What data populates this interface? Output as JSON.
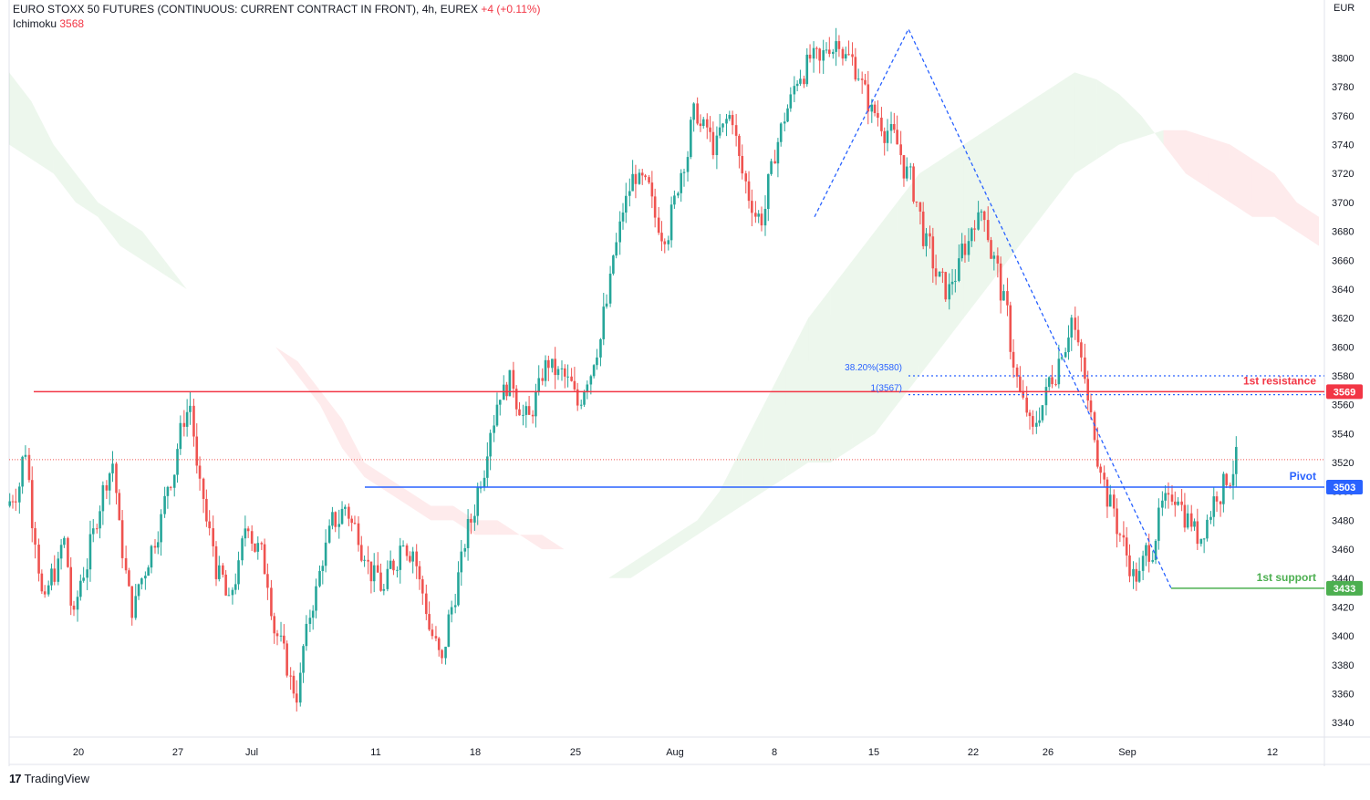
{
  "header": {
    "symbol": "EURO STOXX 50 FUTURES (CONTINUOUS: CURRENT CONTRACT IN FRONT), 4h, EUREX",
    "change": "+4 (+0.11%)",
    "indicator_name": "Ichimoku",
    "indicator_value": "3568"
  },
  "brand": {
    "name": "TradingView"
  },
  "colors": {
    "up": "#26a69a",
    "down": "#ef5350",
    "resistance": "#f23645",
    "pivot": "#2962ff",
    "support": "#4caf50",
    "fib": "#2962ff"
  },
  "chart_data": {
    "type": "candlestick",
    "title": "EURO STOXX 50 FUTURES (CONTINUOUS: CURRENT CONTRACT IN FRONT), 4h, EUREX",
    "currency_label": "EUR",
    "ylim": [
      3330,
      3830
    ],
    "y_ticks": [
      3340,
      3360,
      3380,
      3400,
      3420,
      3440,
      3460,
      3480,
      3500,
      3520,
      3540,
      3560,
      3580,
      3600,
      3620,
      3640,
      3660,
      3680,
      3700,
      3720,
      3740,
      3760,
      3780,
      3800
    ],
    "x_ticks": [
      "20",
      "27",
      "Jul",
      "11",
      "18",
      "25",
      "Aug",
      "8",
      "15",
      "22",
      "26",
      "Sep",
      "12"
    ],
    "close_path": [
      3500,
      3530,
      3470,
      3420,
      3445,
      3465,
      3410,
      3445,
      3470,
      3500,
      3520,
      3460,
      3420,
      3440,
      3460,
      3480,
      3510,
      3540,
      3560,
      3500,
      3470,
      3440,
      3420,
      3445,
      3480,
      3460,
      3440,
      3400,
      3380,
      3360,
      3400,
      3430,
      3460,
      3480,
      3490,
      3475,
      3460,
      3440,
      3430,
      3450,
      3470,
      3460,
      3430,
      3400,
      3380,
      3420,
      3450,
      3480,
      3510,
      3545,
      3570,
      3575,
      3560,
      3550,
      3570,
      3590,
      3580,
      3575,
      3560,
      3580,
      3600,
      3630,
      3670,
      3700,
      3720,
      3710,
      3690,
      3680,
      3700,
      3730,
      3760,
      3750,
      3740,
      3750,
      3760,
      3720,
      3700,
      3690,
      3720,
      3750,
      3770,
      3790,
      3800,
      3795,
      3810,
      3815,
      3800,
      3790,
      3770,
      3760,
      3750,
      3740,
      3720,
      3700,
      3670,
      3650,
      3640,
      3650,
      3670,
      3690,
      3695,
      3660,
      3630,
      3590,
      3560,
      3540,
      3560,
      3580,
      3600,
      3620,
      3590,
      3550,
      3520,
      3490,
      3470,
      3450,
      3440,
      3460,
      3480,
      3490,
      3500,
      3480,
      3470,
      3480,
      3500,
      3510,
      3522
    ],
    "indicators": {
      "ichimoku_value": 3568,
      "cloud_span_a": [
        3790,
        3770,
        3740,
        3720,
        3700,
        3690,
        3680,
        3660,
        3640,
        3630,
        3620,
        3610,
        3600,
        3580,
        3560,
        3530,
        3510,
        3500,
        3490,
        3480,
        3480,
        3470,
        3470,
        3470,
        3460,
        3460,
        3450,
        3440,
        3450,
        3460,
        3470,
        3480,
        3500,
        3530,
        3560,
        3590,
        3620,
        3640,
        3660,
        3680,
        3700,
        3720,
        3730,
        3740,
        3750,
        3760,
        3770,
        3780,
        3790,
        3785,
        3775,
        3760,
        3740,
        3720,
        3710,
        3700,
        3690,
        3690,
        3680,
        3670
      ],
      "cloud_span_b": [
        3740,
        3730,
        3720,
        3700,
        3690,
        3670,
        3660,
        3650,
        3640,
        3630,
        3620,
        3610,
        3600,
        3590,
        3570,
        3550,
        3520,
        3510,
        3500,
        3490,
        3490,
        3480,
        3480,
        3470,
        3470,
        3460,
        3450,
        3440,
        3440,
        3450,
        3460,
        3470,
        3480,
        3490,
        3500,
        3510,
        3520,
        3520,
        3530,
        3540,
        3560,
        3580,
        3600,
        3620,
        3640,
        3660,
        3680,
        3700,
        3720,
        3730,
        3740,
        3745,
        3750,
        3750,
        3745,
        3740,
        3730,
        3720,
        3700,
        3690
      ]
    },
    "levels": {
      "resistance": {
        "label": "1st resistance",
        "value": 3569,
        "value_label": "3569"
      },
      "pivot": {
        "label": "Pivot",
        "value": 3503,
        "value_label": "3503"
      },
      "support": {
        "label": "1st support",
        "value": 3433,
        "value_label": "3433"
      },
      "last_price": 3522
    },
    "fibonacci": {
      "fib_382": {
        "label": "38.20%(3580)",
        "value": 3580
      },
      "fib_100": {
        "label": "1(3567)",
        "value": 3567
      },
      "swing_high": 3820,
      "swing_low": 3433
    }
  }
}
